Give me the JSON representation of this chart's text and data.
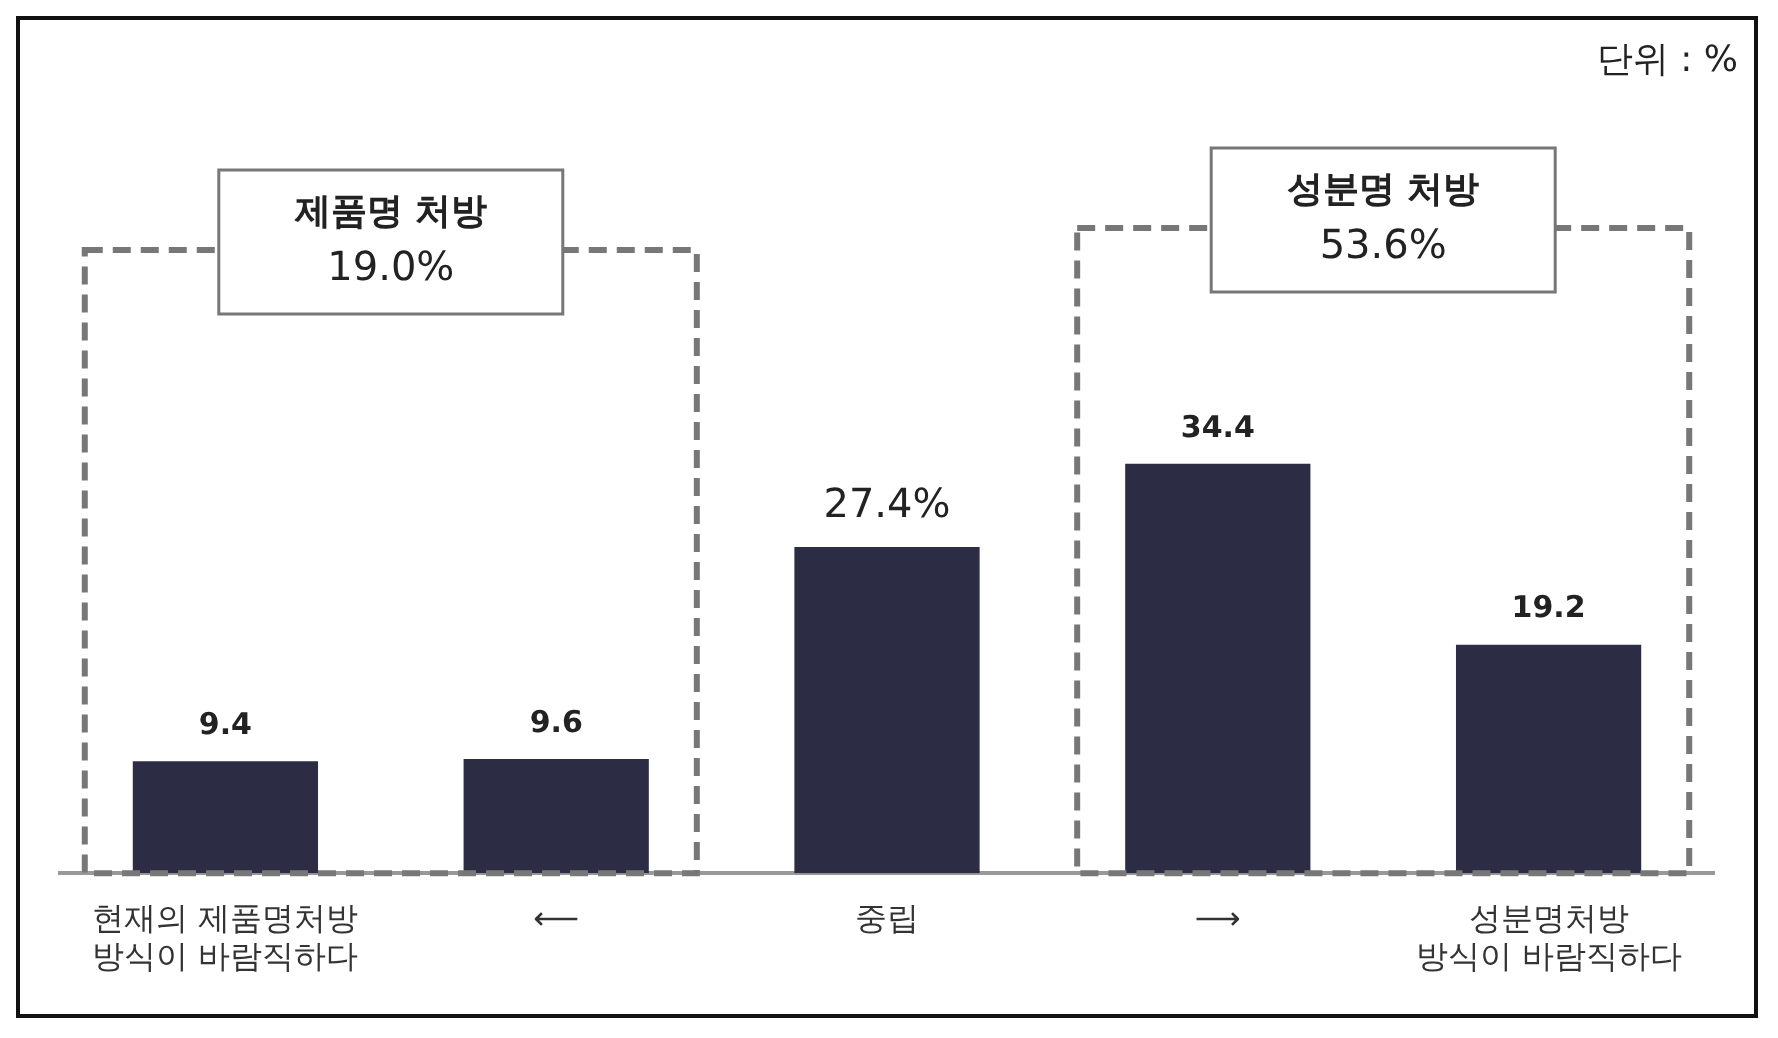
{
  "chart_data": {
    "type": "bar",
    "categories": [
      "현재의 제품명처방\n방식이 바람직하다",
      "⟵",
      "중립",
      "⟶",
      "성분명처방\n방식이 바람직하다"
    ],
    "values": [
      9.4,
      9.6,
      27.4,
      34.4,
      19.2
    ],
    "value_labels": [
      "9.4",
      "9.6",
      "27.4%",
      "34.4",
      "19.2"
    ],
    "color": "#2c2d45",
    "annotations": [
      "단위 : %",
      "제품명 처방\n19.0%",
      "성분명 처방\n53.6%"
    ],
    "grid": false,
    "legend": false
  }
}
